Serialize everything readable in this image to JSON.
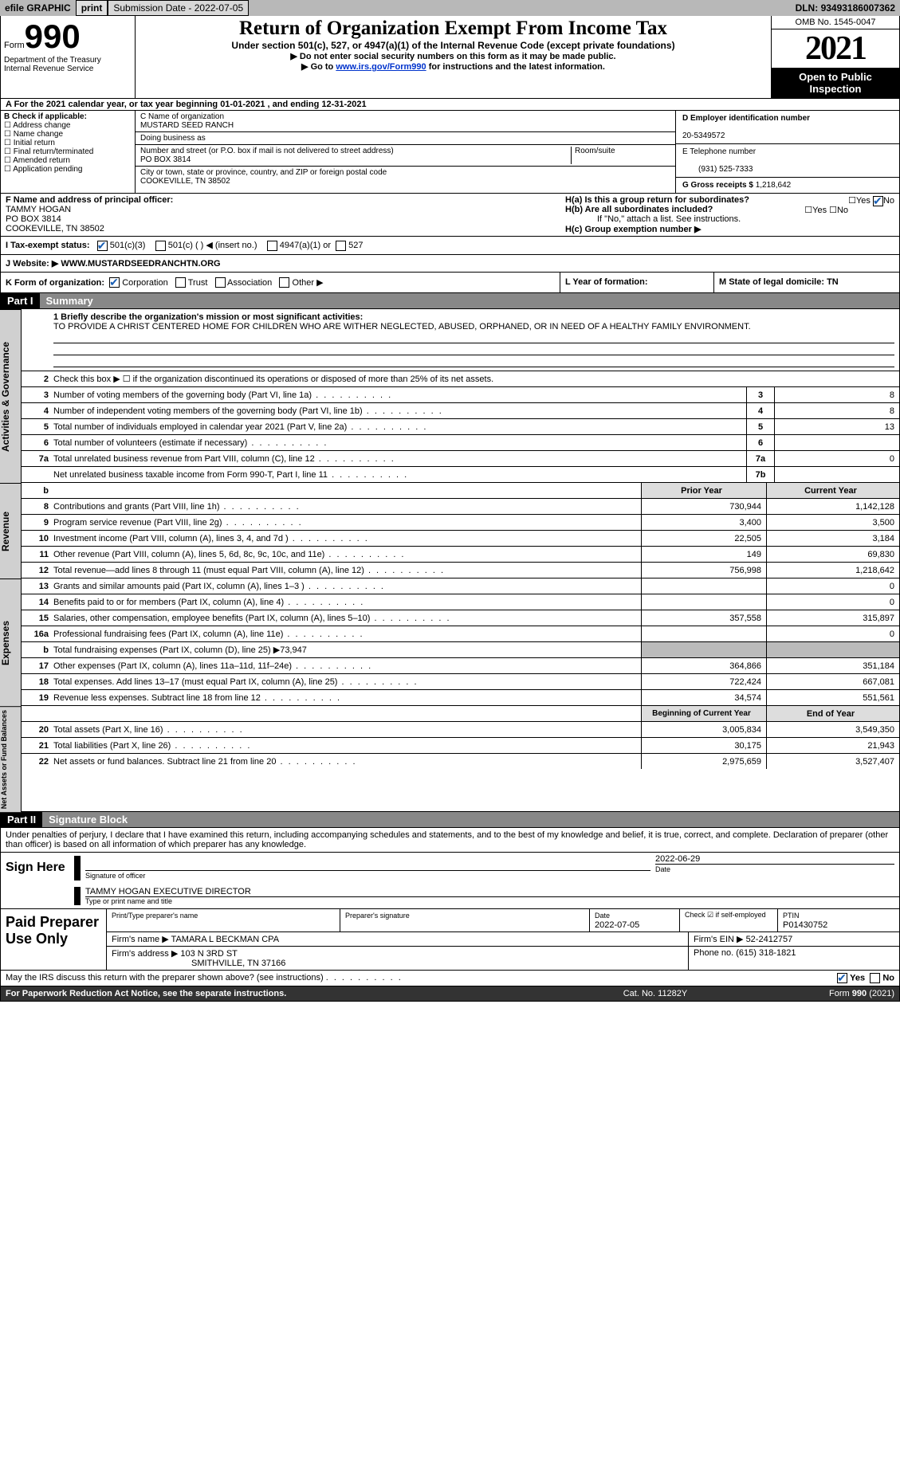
{
  "topbar": {
    "efile": "efile GRAPHIC",
    "print": "print",
    "subdate_label": "Submission Date - ",
    "subdate": "2022-07-05",
    "dln_label": "DLN: ",
    "dln": "93493186007362"
  },
  "header": {
    "form_prefix": "Form",
    "form_num": "990",
    "dept": "Department of the Treasury",
    "irs": "Internal Revenue Service",
    "title": "Return of Organization Exempt From Income Tax",
    "sub": "Under section 501(c), 527, or 4947(a)(1) of the Internal Revenue Code (except private foundations)",
    "note1": "▶ Do not enter social security numbers on this form as it may be made public.",
    "note2_pre": "▶ Go to ",
    "note2_link": "www.irs.gov/Form990",
    "note2_post": " for instructions and the latest information.",
    "omb": "OMB No. 1545-0047",
    "year": "2021",
    "otp1": "Open to Public",
    "otp2": "Inspection"
  },
  "rowA": "A For the 2021 calendar year, or tax year beginning 01-01-2021   , and ending 12-31-2021",
  "colB": {
    "title": "B Check if applicable:",
    "opts": [
      "Address change",
      "Name change",
      "Initial return",
      "Final return/terminated",
      "Amended return",
      "Application pending"
    ]
  },
  "colC": {
    "name_lbl": "C Name of organization",
    "name": "MUSTARD SEED RANCH",
    "dba_lbl": "Doing business as",
    "addr_lbl": "Number and street (or P.O. box if mail is not delivered to street address)",
    "room_lbl": "Room/suite",
    "addr": "PO BOX 3814",
    "city_lbl": "City or town, state or province, country, and ZIP or foreign postal code",
    "city": "COOKEVILLE, TN  38502"
  },
  "colD": {
    "ein_lbl": "D Employer identification number",
    "ein": "20-5349572",
    "phone_lbl": "E Telephone number",
    "phone": "(931) 525-7333",
    "gross_lbl": "G Gross receipts $ ",
    "gross": "1,218,642"
  },
  "rowF": {
    "lbl": "F  Name and address of principal officer:",
    "name": "TAMMY HOGAN",
    "addr1": "PO BOX 3814",
    "addr2": "COOKEVILLE, TN  38502"
  },
  "rowH": {
    "ha": "H(a)  Is this a group return for subordinates?",
    "hb": "H(b)  Are all subordinates included?",
    "hb_note": "If \"No,\" attach a list. See instructions.",
    "hc": "H(c)  Group exemption number ▶"
  },
  "rowI": {
    "lbl": "I   Tax-exempt status:",
    "o1": "501(c)(3)",
    "o2": "501(c) (  ) ◀ (insert no.)",
    "o3": "4947(a)(1) or",
    "o4": "527"
  },
  "rowJ": {
    "lbl": "J   Website: ▶   ",
    "val": "WWW.MUSTARDSEEDRANCHTN.ORG"
  },
  "rowK": "K Form of organization:",
  "rowK_opts": [
    "Corporation",
    "Trust",
    "Association",
    "Other ▶"
  ],
  "rowL": "L Year of formation:",
  "rowM": "M State of legal domicile: TN",
  "part1": {
    "label": "Part I",
    "title": "Summary"
  },
  "vtabs": {
    "ag": "Activities & Governance",
    "rev": "Revenue",
    "exp": "Expenses",
    "na": "Net Assets or\nFund Balances"
  },
  "mission": {
    "lbl": "1   Briefly describe the organization's mission or most significant activities:",
    "txt": "TO PROVIDE A CHRIST CENTERED HOME FOR CHILDREN WHO ARE WITHER NEGLECTED, ABUSED, ORPHANED, OR IN NEED OF A HEALTHY FAMILY ENVIRONMENT."
  },
  "lines_ag": [
    {
      "n": "2",
      "t": "Check this box ▶ ☐  if the organization discontinued its operations or disposed of more than 25% of its net assets."
    },
    {
      "n": "3",
      "t": "Number of voting members of the governing body (Part VI, line 1a)",
      "box": "3",
      "v": "8"
    },
    {
      "n": "4",
      "t": "Number of independent voting members of the governing body (Part VI, line 1b)",
      "box": "4",
      "v": "8"
    },
    {
      "n": "5",
      "t": "Total number of individuals employed in calendar year 2021 (Part V, line 2a)",
      "box": "5",
      "v": "13"
    },
    {
      "n": "6",
      "t": "Total number of volunteers (estimate if necessary)",
      "box": "6",
      "v": ""
    },
    {
      "n": "7a",
      "t": "Total unrelated business revenue from Part VIII, column (C), line 12",
      "box": "7a",
      "v": "0"
    },
    {
      "n": "",
      "t": "Net unrelated business taxable income from Form 990-T, Part I, line 11",
      "box": "7b",
      "v": ""
    }
  ],
  "cols_hdr": {
    "b": "b",
    "prior": "Prior Year",
    "curr": "Current Year"
  },
  "lines_rev": [
    {
      "n": "8",
      "t": "Contributions and grants (Part VIII, line 1h)",
      "p": "730,944",
      "c": "1,142,128"
    },
    {
      "n": "9",
      "t": "Program service revenue (Part VIII, line 2g)",
      "p": "3,400",
      "c": "3,500"
    },
    {
      "n": "10",
      "t": "Investment income (Part VIII, column (A), lines 3, 4, and 7d )",
      "p": "22,505",
      "c": "3,184"
    },
    {
      "n": "11",
      "t": "Other revenue (Part VIII, column (A), lines 5, 6d, 8c, 9c, 10c, and 11e)",
      "p": "149",
      "c": "69,830"
    },
    {
      "n": "12",
      "t": "Total revenue—add lines 8 through 11 (must equal Part VIII, column (A), line 12)",
      "p": "756,998",
      "c": "1,218,642"
    }
  ],
  "lines_exp": [
    {
      "n": "13",
      "t": "Grants and similar amounts paid (Part IX, column (A), lines 1–3 )",
      "p": "",
      "c": "0"
    },
    {
      "n": "14",
      "t": "Benefits paid to or for members (Part IX, column (A), line 4)",
      "p": "",
      "c": "0"
    },
    {
      "n": "15",
      "t": "Salaries, other compensation, employee benefits (Part IX, column (A), lines 5–10)",
      "p": "357,558",
      "c": "315,897"
    },
    {
      "n": "16a",
      "t": "Professional fundraising fees (Part IX, column (A), line 11e)",
      "p": "",
      "c": "0"
    },
    {
      "n": "b",
      "t": "Total fundraising expenses (Part IX, column (D), line 25) ▶73,947",
      "shade": true
    },
    {
      "n": "17",
      "t": "Other expenses (Part IX, column (A), lines 11a–11d, 11f–24e)",
      "p": "364,866",
      "c": "351,184"
    },
    {
      "n": "18",
      "t": "Total expenses. Add lines 13–17 (must equal Part IX, column (A), line 25)",
      "p": "722,424",
      "c": "667,081"
    },
    {
      "n": "19",
      "t": "Revenue less expenses. Subtract line 18 from line 12",
      "p": "34,574",
      "c": "551,561"
    }
  ],
  "cols_hdr2": {
    "prior": "Beginning of Current Year",
    "curr": "End of Year"
  },
  "lines_na": [
    {
      "n": "20",
      "t": "Total assets (Part X, line 16)",
      "p": "3,005,834",
      "c": "3,549,350"
    },
    {
      "n": "21",
      "t": "Total liabilities (Part X, line 26)",
      "p": "30,175",
      "c": "21,943"
    },
    {
      "n": "22",
      "t": "Net assets or fund balances. Subtract line 21 from line 20",
      "p": "2,975,659",
      "c": "3,527,407"
    }
  ],
  "part2": {
    "label": "Part II",
    "title": "Signature Block"
  },
  "sig_decl": "Under penalties of perjury, I declare that I have examined this return, including accompanying schedules and statements, and to the best of my knowledge and belief, it is true, correct, and complete. Declaration of preparer (other than officer) is based on all information of which preparer has any knowledge.",
  "sign": {
    "here": "Sign Here",
    "sig_lbl": "Signature of officer",
    "date": "2022-06-29",
    "name": "TAMMY HOGAN  EXECUTIVE DIRECTOR",
    "name_lbl": "Type or print name and title"
  },
  "paid": {
    "title": "Paid Preparer Use Only",
    "h1": "Print/Type preparer's name",
    "h2": "Preparer's signature",
    "h3": "Date",
    "h3v": "2022-07-05",
    "h4": "Check ☑ if self-employed",
    "h5": "PTIN",
    "h5v": "P01430752",
    "firm_lbl": "Firm's name      ▶ ",
    "firm": "TAMARA L BECKMAN CPA",
    "ein_lbl": "Firm's EIN ▶ ",
    "ein": "52-2412757",
    "addr_lbl": "Firm's address ▶ ",
    "addr": "103 N 3RD ST",
    "city": "SMITHVILLE, TN  37166",
    "phone_lbl": "Phone no. ",
    "phone": "(615) 318-1821"
  },
  "footer": {
    "q": "May the IRS discuss this return with the preparer shown above? (see instructions)",
    "yes": "Yes",
    "no": "No",
    "pra": "For Paperwork Reduction Act Notice, see the separate instructions.",
    "cat": "Cat. No. 11282Y",
    "form": "Form 990 (2021)"
  }
}
